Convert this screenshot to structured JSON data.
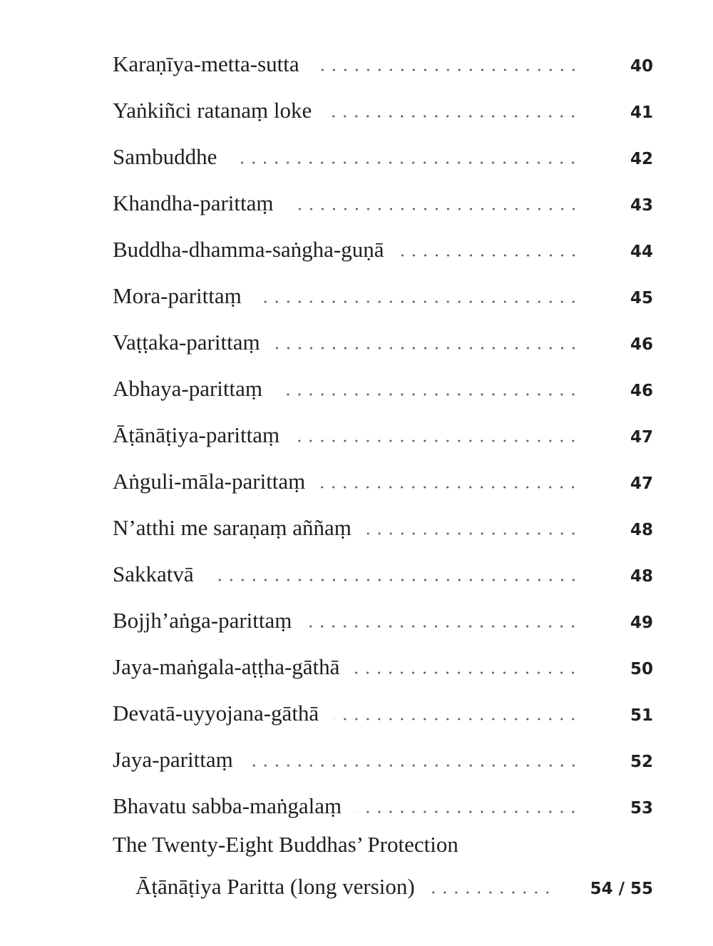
{
  "toc": {
    "entries": [
      {
        "title": "Karaṇīya-metta-sutta",
        "page": "40"
      },
      {
        "title": "Yaṅkiñci ratanaṃ loke",
        "page": "41"
      },
      {
        "title": "Sambuddhe",
        "page": "42"
      },
      {
        "title": "Khandha-parittaṃ",
        "page": "43"
      },
      {
        "title": "Buddha-dhamma-saṅgha-guṇā",
        "page": "44"
      },
      {
        "title": "Mora-parittaṃ",
        "page": "45"
      },
      {
        "title": "Vaṭṭaka-parittaṃ",
        "page": "46"
      },
      {
        "title": "Abhaya-parittaṃ",
        "page": "46"
      },
      {
        "title": "Āṭānāṭiya-parittaṃ",
        "page": "47"
      },
      {
        "title": "Aṅguli-māla-parittaṃ",
        "page": "47"
      },
      {
        "title": "N’atthi me saraṇaṃ aññaṃ",
        "page": "48"
      },
      {
        "title": "Sakkatvā",
        "page": "48"
      },
      {
        "title": "Bojjh’aṅga-parittaṃ",
        "page": "49"
      },
      {
        "title": "Jaya-maṅgala-aṭṭha-gāthā",
        "page": "50"
      },
      {
        "title": "Devatā-uyyojana-gāthā",
        "page": "51"
      },
      {
        "title": "Jaya-parittaṃ",
        "page": "52"
      },
      {
        "title": "Bhavatu sabba-maṅgalaṃ",
        "page": "53"
      }
    ],
    "final_group": {
      "heading": "The Twenty-Eight Buddhas’ Protection",
      "entry": {
        "title": "Āṭānāṭiya Paritta (long version)",
        "page": "54 / 55"
      }
    }
  }
}
